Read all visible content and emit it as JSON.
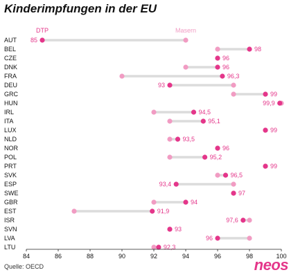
{
  "title": "Kinderimpfungen in der EU",
  "source": "Quelle: OECD",
  "logo": "neos",
  "colors": {
    "dtp": "#e4368a",
    "masern": "#f19cc3",
    "connector": "#dcdcdc",
    "label": "#e4368a",
    "logo": "#e4368a"
  },
  "chart_data": {
    "type": "dumbbell",
    "series": [
      {
        "name": "DTP",
        "key": "dtp"
      },
      {
        "name": "Masern",
        "key": "masern"
      }
    ],
    "xlim": [
      84,
      100
    ],
    "xticks": [
      84,
      86,
      88,
      90,
      92,
      94,
      96,
      98,
      100
    ],
    "rows": [
      {
        "country": "AUT",
        "dtp": 85,
        "masern": 94,
        "dtp_label": "85"
      },
      {
        "country": "BEL",
        "dtp": 98,
        "masern": 96,
        "dtp_label": "98"
      },
      {
        "country": "CZE",
        "dtp": 96,
        "masern": 96,
        "dtp_label": "96"
      },
      {
        "country": "DNK",
        "dtp": 96,
        "masern": 94,
        "dtp_label": "96"
      },
      {
        "country": "FRA",
        "dtp": 96.3,
        "masern": 90,
        "dtp_label": "96,3"
      },
      {
        "country": "DEU",
        "dtp": 93,
        "masern": 97,
        "dtp_label": "93"
      },
      {
        "country": "GRC",
        "dtp": 99,
        "masern": 97,
        "dtp_label": "99"
      },
      {
        "country": "HUN",
        "dtp": 99.9,
        "masern": 100,
        "dtp_label": "99,9"
      },
      {
        "country": "IRL",
        "dtp": 94.5,
        "masern": 92,
        "dtp_label": "94,5"
      },
      {
        "country": "ITA",
        "dtp": 95.1,
        "masern": 93,
        "dtp_label": "95,1"
      },
      {
        "country": "LUX",
        "dtp": 99,
        "masern": 99,
        "dtp_label": "99"
      },
      {
        "country": "NLD",
        "dtp": 93.5,
        "masern": 93,
        "dtp_label": "93,5"
      },
      {
        "country": "NOR",
        "dtp": 96,
        "masern": 96,
        "dtp_label": "96"
      },
      {
        "country": "POL",
        "dtp": 95.2,
        "masern": 93,
        "dtp_label": "95,2"
      },
      {
        "country": "PRT",
        "dtp": 99,
        "masern": 99,
        "dtp_label": "99"
      },
      {
        "country": "SVK",
        "dtp": 96.5,
        "masern": 96,
        "dtp_label": "96,5"
      },
      {
        "country": "ESP",
        "dtp": 93.4,
        "masern": 97,
        "dtp_label": "93,4"
      },
      {
        "country": "SWE",
        "dtp": 97,
        "masern": 97,
        "dtp_label": "97"
      },
      {
        "country": "GBR",
        "dtp": 94,
        "masern": 92,
        "dtp_label": "94"
      },
      {
        "country": "EST",
        "dtp": 91.9,
        "masern": 87,
        "dtp_label": "91,9"
      },
      {
        "country": "ISR",
        "dtp": 97.6,
        "masern": 98,
        "dtp_label": "97,6"
      },
      {
        "country": "SVN",
        "dtp": 93,
        "masern": 93,
        "dtp_label": "93"
      },
      {
        "country": "LVA",
        "dtp": 96,
        "masern": 98,
        "dtp_label": "96"
      },
      {
        "country": "LTU",
        "dtp": 92.3,
        "masern": 92,
        "dtp_label": "92,3"
      }
    ]
  }
}
